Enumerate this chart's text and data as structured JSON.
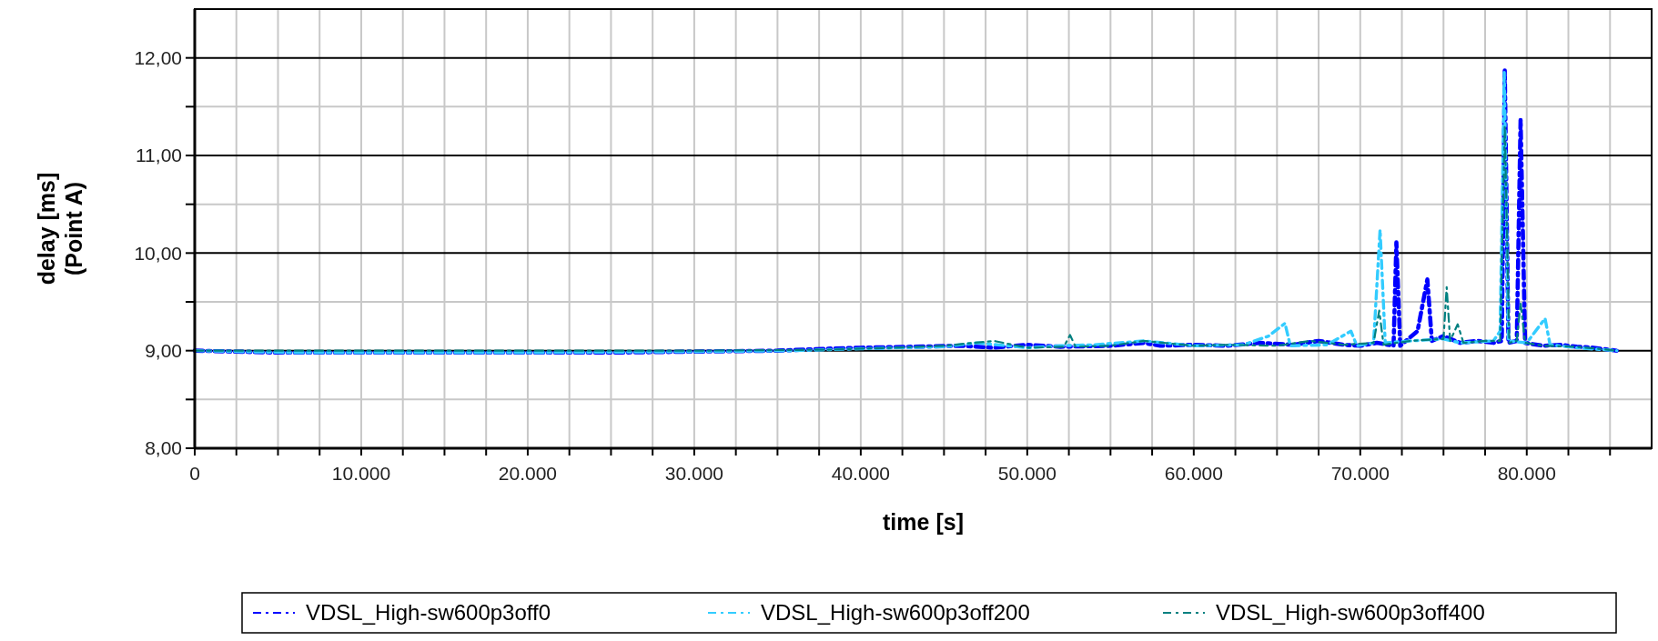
{
  "chart_data": {
    "type": "line",
    "xlabel": "time [s]",
    "ylabel": "delay [ms]\n(Point A)",
    "xlim": [
      0,
      87500
    ],
    "ylim": [
      8,
      12.5
    ],
    "xticks": [
      {
        "value": 0,
        "label": "0"
      },
      {
        "value": 2500,
        "label": null
      },
      {
        "value": 5000,
        "label": null
      },
      {
        "value": 7500,
        "label": null
      },
      {
        "value": 10000,
        "label": "10.000"
      },
      {
        "value": 12500,
        "label": null
      },
      {
        "value": 15000,
        "label": null
      },
      {
        "value": 17500,
        "label": null
      },
      {
        "value": 20000,
        "label": "20.000"
      },
      {
        "value": 22500,
        "label": null
      },
      {
        "value": 25000,
        "label": null
      },
      {
        "value": 27500,
        "label": null
      },
      {
        "value": 30000,
        "label": "30.000"
      },
      {
        "value": 32500,
        "label": null
      },
      {
        "value": 35000,
        "label": null
      },
      {
        "value": 37500,
        "label": null
      },
      {
        "value": 40000,
        "label": "40.000"
      },
      {
        "value": 42500,
        "label": null
      },
      {
        "value": 45000,
        "label": null
      },
      {
        "value": 47500,
        "label": null
      },
      {
        "value": 50000,
        "label": "50.000"
      },
      {
        "value": 52500,
        "label": null
      },
      {
        "value": 55000,
        "label": null
      },
      {
        "value": 57500,
        "label": null
      },
      {
        "value": 60000,
        "label": "60.000"
      },
      {
        "value": 62500,
        "label": null
      },
      {
        "value": 65000,
        "label": null
      },
      {
        "value": 67500,
        "label": null
      },
      {
        "value": 70000,
        "label": "70.000"
      },
      {
        "value": 72500,
        "label": null
      },
      {
        "value": 75000,
        "label": null
      },
      {
        "value": 77500,
        "label": null
      },
      {
        "value": 80000,
        "label": "80.000"
      },
      {
        "value": 82500,
        "label": null
      },
      {
        "value": 85000,
        "label": null
      }
    ],
    "yticks": [
      {
        "value": 8,
        "label": "8,00"
      },
      {
        "value": 8.5,
        "label": null
      },
      {
        "value": 9,
        "label": "9,00"
      },
      {
        "value": 9.5,
        "label": null
      },
      {
        "value": 10,
        "label": "10,00"
      },
      {
        "value": 10.5,
        "label": null
      },
      {
        "value": 11,
        "label": "11,00"
      },
      {
        "value": 11.5,
        "label": null
      },
      {
        "value": 12,
        "label": "12,00"
      }
    ],
    "grid": true,
    "legend": "bottom",
    "line_style": "dashed",
    "marker": "none",
    "series": [
      {
        "name": "VDSL_High-sw600p3off0",
        "color": "#0000ff",
        "x": [
          0,
          5000,
          15000,
          25000,
          35000,
          38000,
          40000,
          43000,
          46000,
          48000,
          50000,
          52000,
          55000,
          57000,
          58000,
          60000,
          62000,
          64000,
          66000,
          67500,
          69000,
          70000,
          71000,
          72000,
          72170,
          72400,
          73440,
          74030,
          74300,
          75000,
          76000,
          77000,
          78000,
          78500,
          78680,
          78900,
          79400,
          79630,
          79900,
          81000,
          82000,
          83000,
          84000,
          85400
        ],
        "values": [
          9,
          8.98,
          8.98,
          8.98,
          9,
          9.02,
          9.03,
          9.04,
          9.05,
          9.03,
          9.06,
          9.04,
          9.05,
          9.08,
          9.05,
          9.06,
          9.05,
          9.08,
          9.06,
          9.1,
          9.06,
          9.05,
          9.08,
          9.05,
          10.11,
          9.05,
          9.2,
          9.73,
          9.1,
          9.15,
          9.08,
          9.1,
          9.08,
          9.1,
          11.87,
          9.08,
          9.1,
          11.37,
          9.08,
          9.05,
          9.06,
          9.04,
          9.03,
          9
        ]
      },
      {
        "name": "VDSL_High-sw600p3off200",
        "color": "#33ccff",
        "x": [
          0,
          6000,
          12000,
          20000,
          30000,
          36000,
          40000,
          45000,
          47000,
          50000,
          52000,
          54000,
          57000,
          60000,
          63000,
          64500,
          65480,
          65800,
          68000,
          69440,
          69800,
          70800,
          71190,
          71500,
          73000,
          75000,
          76000,
          78000,
          78400,
          78650,
          78900,
          80000,
          81100,
          81400,
          83000,
          85400
        ],
        "values": [
          9,
          8.98,
          8.98,
          8.98,
          8.99,
          9,
          9.02,
          9.04,
          9.08,
          9.03,
          9.05,
          9.06,
          9.1,
          9.05,
          9.06,
          9.15,
          9.28,
          9.05,
          9.06,
          9.2,
          9.05,
          9.08,
          10.24,
          9.08,
          9.1,
          9.12,
          9.08,
          9.1,
          9.2,
          11.85,
          9.1,
          9.08,
          9.33,
          9.06,
          9.03,
          9
        ]
      },
      {
        "name": "VDSL_High-sw600p3off400",
        "color": "#008080",
        "x": [
          0,
          10000,
          20000,
          30000,
          38000,
          42000,
          45000,
          48000,
          50000,
          52200,
          52570,
          52900,
          55000,
          57000,
          60000,
          62000,
          65000,
          67000,
          69000,
          70800,
          71140,
          71400,
          73000,
          75000,
          75190,
          75400,
          75850,
          76200,
          77500,
          78400,
          78680,
          78950,
          79400,
          79630,
          79900,
          81000,
          83000,
          85400
        ],
        "values": [
          9,
          9,
          9,
          9,
          9.01,
          9.03,
          9.05,
          9.1,
          9.03,
          9.04,
          9.16,
          9.04,
          9.05,
          9.1,
          9.05,
          9.06,
          9.05,
          9.1,
          9.06,
          9.08,
          9.41,
          9.06,
          9.1,
          9.12,
          9.65,
          9.1,
          9.27,
          9.08,
          9.1,
          9.1,
          11.3,
          9.08,
          9.1,
          9.49,
          9.08,
          9.05,
          9.04,
          9
        ]
      }
    ]
  }
}
